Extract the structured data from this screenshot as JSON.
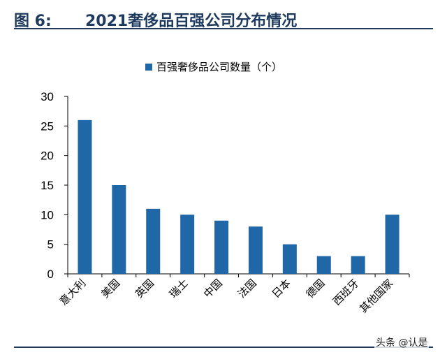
{
  "figure": {
    "number": "图 6:",
    "title": "2021奢侈品百强公司分布情况"
  },
  "watermark": "头条 @认是",
  "colors": {
    "bar": "#1f67a7",
    "header": "#1f3a5f",
    "axis": "#000000"
  },
  "chart_data": {
    "type": "bar",
    "title": "",
    "xlabel": "",
    "ylabel": "",
    "categories": [
      "意大利",
      "美国",
      "英国",
      "瑞士",
      "中国",
      "法国",
      "日本",
      "德国",
      "西班牙",
      "其他国家"
    ],
    "series": [
      {
        "name": "百强奢侈品公司数量（个）",
        "values": [
          26,
          15,
          11,
          10,
          9,
          8,
          5,
          3,
          3,
          10
        ]
      }
    ],
    "ylim": [
      0,
      30
    ],
    "yticks": [
      0,
      5,
      10,
      15,
      20,
      25,
      30
    ],
    "legend": "top-center",
    "grid": false
  }
}
